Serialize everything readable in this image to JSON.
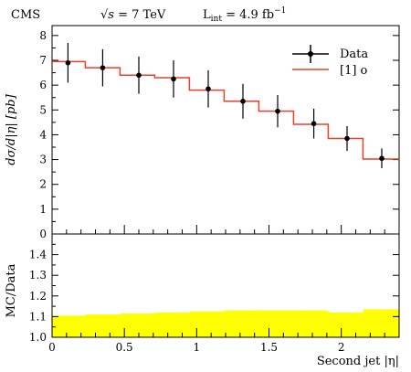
{
  "header": {
    "experiment": "CMS",
    "energy_sqrt_symbol": "√s",
    "energy_value": " = 7 TeV",
    "lumi_prefix": "L",
    "lumi_sub": "int",
    "lumi_value": " = 4.9 fb",
    "lumi_exp": "−1"
  },
  "chart_data": [
    {
      "type": "line",
      "panel": "main",
      "xlabel": "",
      "ylabel": "dσ/d|η| [pb]",
      "xlim": [
        0,
        2.4
      ],
      "ylim": [
        0,
        8.4
      ],
      "yticks": [
        0,
        1,
        2,
        3,
        4,
        5,
        6,
        7,
        8
      ],
      "legend_position": "top-right",
      "series": [
        {
          "name": "Data",
          "kind": "points_with_errors",
          "color": "#000000",
          "x": [
            0.11,
            0.35,
            0.6,
            0.84,
            1.08,
            1.32,
            1.56,
            1.81,
            2.04,
            2.28
          ],
          "y": [
            6.9,
            6.7,
            6.4,
            6.25,
            5.85,
            5.35,
            4.95,
            4.45,
            3.85,
            3.05
          ],
          "yerr": [
            0.8,
            0.75,
            0.75,
            0.75,
            0.75,
            0.7,
            0.65,
            0.6,
            0.5,
            0.4
          ]
        },
        {
          "name": "[1] o",
          "kind": "step",
          "color": "#e8402a",
          "bin_edges": [
            0.0,
            0.23,
            0.47,
            0.71,
            0.95,
            1.19,
            1.43,
            1.67,
            1.91,
            2.15,
            2.4
          ],
          "values": [
            6.95,
            6.7,
            6.4,
            6.3,
            5.8,
            5.35,
            4.95,
            4.42,
            3.85,
            3.02
          ]
        }
      ]
    },
    {
      "type": "area",
      "panel": "ratio",
      "xlabel": "Second jet |η|",
      "ylabel": "MC/Data",
      "xlim": [
        0,
        2.4
      ],
      "ylim": [
        1.0,
        1.5
      ],
      "xticks": [
        0,
        0.5,
        1,
        1.5,
        2
      ],
      "xtick_labels": [
        "0",
        "0.5",
        "1",
        "1.5",
        "2"
      ],
      "yticks": [
        1.0,
        1.1,
        1.2,
        1.3,
        1.4
      ],
      "ytick_labels": [
        "1.0",
        "1.1",
        "1.2",
        "1.3",
        "1.4"
      ],
      "series": [
        {
          "kind": "band",
          "color": "#ffff00",
          "bin_edges": [
            0.0,
            0.23,
            0.47,
            0.71,
            0.95,
            1.19,
            1.43,
            1.67,
            1.91,
            2.15,
            2.4
          ],
          "lower": [
            1.0,
            1.0,
            1.0,
            1.0,
            1.0,
            1.0,
            1.0,
            1.0,
            1.0,
            1.0
          ],
          "upper": [
            1.105,
            1.11,
            1.115,
            1.12,
            1.125,
            1.13,
            1.13,
            1.13,
            1.12,
            1.135
          ]
        }
      ]
    }
  ]
}
